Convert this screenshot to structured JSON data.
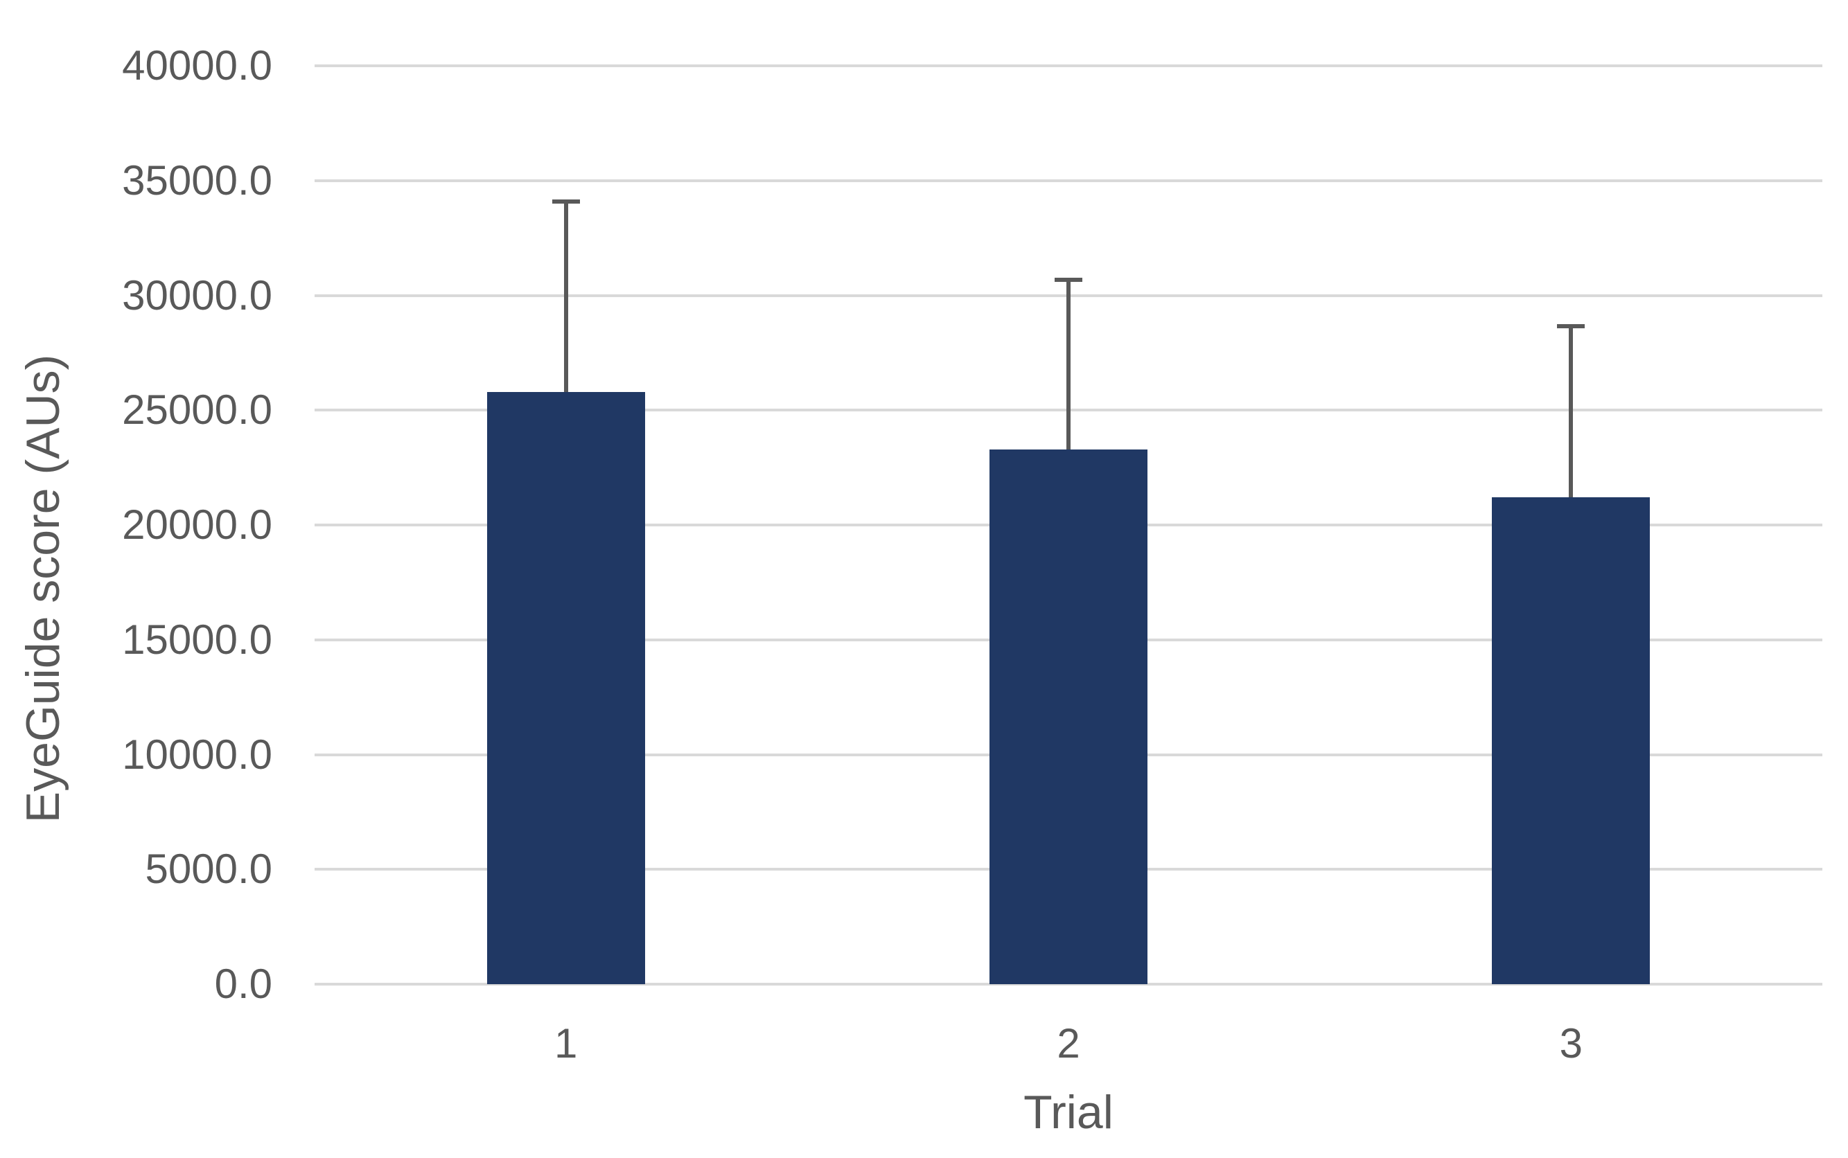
{
  "chart_data": {
    "type": "bar",
    "title": "",
    "xlabel": "Trial",
    "ylabel": "EyeGuide score (AUs)",
    "categories": [
      "1",
      "2",
      "3"
    ],
    "values": [
      25800,
      23280,
      21210
    ],
    "error_bars": {
      "direction": "upper",
      "values": [
        8300,
        7390,
        7440
      ],
      "whisker_tops": [
        34100,
        30670,
        28650
      ]
    },
    "ylim": [
      0,
      40000
    ],
    "ytick_step": 5000,
    "ytick_labels": [
      "0.0",
      "5000.0",
      "10000.0",
      "15000.0",
      "20000.0",
      "25000.0",
      "30000.0",
      "35000.0",
      "40000.0"
    ],
    "grid": true,
    "legend_position": "none",
    "colors": {
      "bar_fill": "#203864",
      "error_bar": "#595959",
      "gridline": "#d9d9d9",
      "tick_text": "#595959",
      "axis_title_text": "#595959",
      "background": "#ffffff"
    }
  }
}
